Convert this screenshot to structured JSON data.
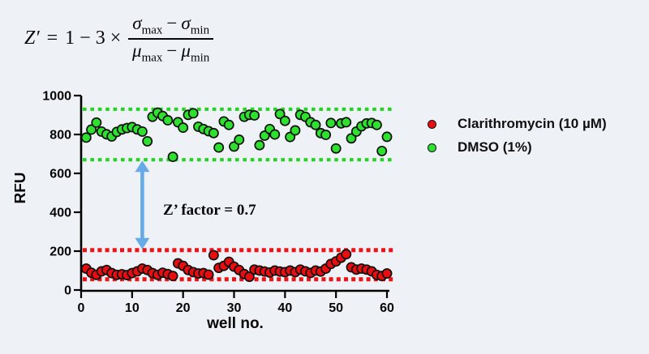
{
  "formula": {
    "lhs": "Z′",
    "eq": "=",
    "coeff": "1 − 3 ×",
    "sigma": "σ",
    "mu": "μ",
    "max": "max",
    "min": "min",
    "minus": "−"
  },
  "legend": {
    "items": [
      {
        "id": "clarithromycin",
        "label": "Clarithromycin (10 µM)",
        "color": "#e90d10"
      },
      {
        "id": "dmso",
        "label": "DMSO (1%)",
        "color": "#2ee12e"
      }
    ]
  },
  "chart_data": {
    "type": "scatter",
    "xlabel": "well no.",
    "ylabel": "RFU",
    "xlim": [
      0,
      60
    ],
    "ylim": [
      0,
      1000
    ],
    "xticks": [
      0,
      10,
      20,
      30,
      40,
      50,
      60
    ],
    "yticks": [
      0,
      200,
      400,
      600,
      800,
      1000
    ],
    "grid": false,
    "legend_position": "right",
    "annotation": {
      "text": "Z’ factor = 0.7",
      "x_well": 16,
      "y_rfu": 395
    },
    "arrow": {
      "x_well": 12,
      "y_from_rfu": 670,
      "y_to_rfu": 205,
      "color": "#66abe8"
    },
    "reference_lines": [
      {
        "y": 930,
        "color": "#22d422",
        "thickness": 4.2,
        "dash": "4.6 4.8",
        "note": "DMSO upper band"
      },
      {
        "y": 670,
        "color": "#22d422",
        "thickness": 4.2,
        "dash": "4.6 4.8",
        "note": "DMSO lower band"
      },
      {
        "y": 205,
        "color": "#ef1214",
        "thickness": 5,
        "dash": "5 4.2",
        "note": "Clarithromycin upper band"
      },
      {
        "y": 55,
        "color": "#ef1214",
        "thickness": 5,
        "dash": "5 4.2",
        "note": "Clarithromycin lower band"
      }
    ],
    "x": [
      1,
      2,
      3,
      4,
      5,
      6,
      7,
      8,
      9,
      10,
      11,
      12,
      13,
      14,
      15,
      16,
      17,
      18,
      19,
      20,
      21,
      22,
      23,
      24,
      25,
      26,
      27,
      28,
      29,
      30,
      31,
      32,
      33,
      34,
      35,
      36,
      37,
      38,
      39,
      40,
      41,
      42,
      43,
      44,
      45,
      46,
      47,
      48,
      49,
      50,
      51,
      52,
      53,
      54,
      55,
      56,
      57,
      58,
      59,
      60
    ],
    "series": [
      {
        "id": "dmso",
        "name": "DMSO (1%)",
        "color": "#2ee12e",
        "values": [
          784,
          825,
          861,
          815,
          801,
          790,
          813,
          826,
          833,
          838,
          826,
          815,
          765,
          891,
          912,
          895,
          873,
          685,
          863,
          835,
          901,
          909,
          840,
          828,
          817,
          807,
          733,
          867,
          849,
          738,
          773,
          891,
          901,
          898,
          745,
          794,
          828,
          800,
          905,
          870,
          787,
          821,
          901,
          891,
          863,
          849,
          807,
          798,
          859,
          728,
          857,
          863,
          780,
          815,
          842,
          857,
          859,
          849,
          715,
          788
        ]
      },
      {
        "id": "clarithromycin",
        "name": "Clarithromycin (10 µM)",
        "color": "#e90d10",
        "values": [
          110,
          89,
          78,
          96,
          103,
          87,
          78,
          81,
          77,
          87,
          96,
          110,
          103,
          87,
          78,
          89,
          82,
          72,
          137,
          124,
          103,
          92,
          85,
          87,
          79,
          179,
          114,
          124,
          145,
          120,
          103,
          82,
          68,
          105,
          100,
          95,
          90,
          100,
          95,
          92,
          100,
          92,
          105,
          96,
          88,
          100,
          95,
          110,
          134,
          147,
          166,
          184,
          117,
          105,
          110,
          105,
          96,
          78,
          72,
          85
        ]
      }
    ]
  }
}
